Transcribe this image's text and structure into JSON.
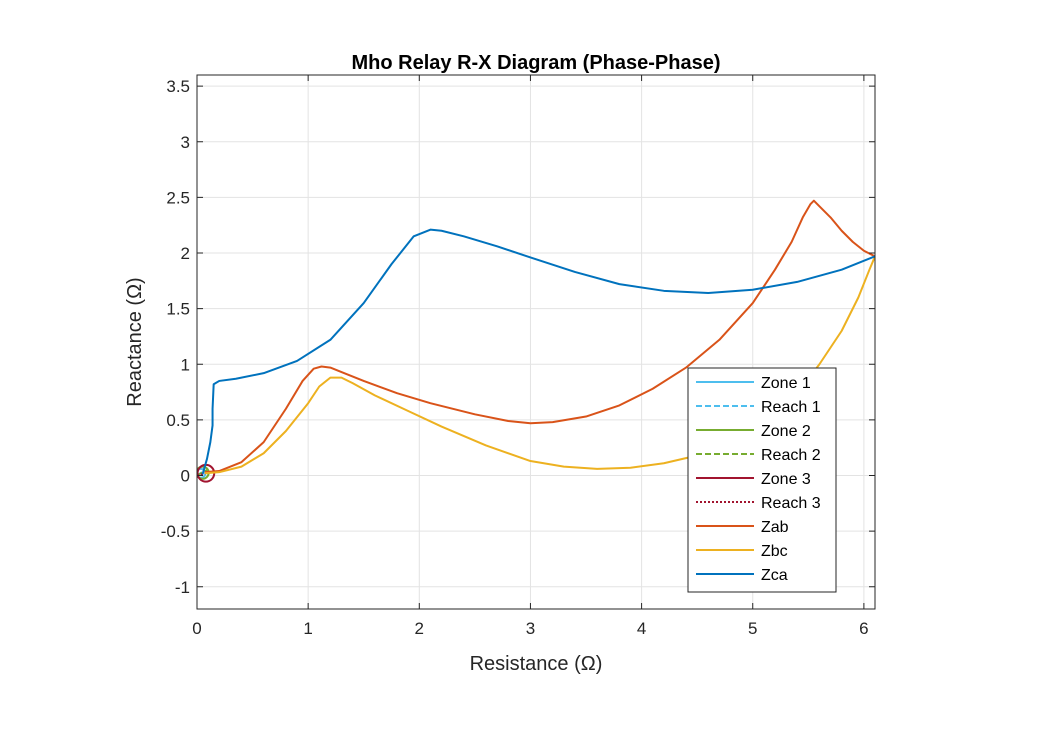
{
  "chart_data": {
    "type": "line",
    "title": "Mho Relay R-X Diagram (Phase-Phase)",
    "xlabel": "Resistance (Ω)",
    "ylabel": "Reactance (Ω)",
    "xlim": [
      0,
      6.1
    ],
    "ylim": [
      -1.2,
      3.6
    ],
    "xticks": [
      0,
      1,
      2,
      3,
      4,
      5,
      6
    ],
    "yticks": [
      -1,
      -0.5,
      0,
      0.5,
      1,
      1.5,
      2,
      2.5,
      3,
      3.5
    ],
    "xtick_labels": [
      "0",
      "1",
      "2",
      "3",
      "4",
      "5",
      "6"
    ],
    "ytick_labels": [
      "-1",
      "-0.5",
      "0",
      "0.5",
      "1",
      "1.5",
      "2",
      "2.5",
      "3",
      "3.5"
    ],
    "grid": true,
    "legend_position": "right, lower-middle",
    "series": [
      {
        "name": "Zone 1",
        "kind": "circle",
        "center": [
          0.035,
          0.02
        ],
        "radius": 0.04,
        "color": "#4DBEEE",
        "dash": "solid"
      },
      {
        "name": "Reach 1",
        "kind": "line",
        "x": [
          0,
          0.06
        ],
        "y": [
          0,
          0.04
        ],
        "color": "#4DBEEE",
        "dash": "dashed"
      },
      {
        "name": "Zone 2",
        "kind": "circle",
        "center": [
          0.05,
          0.025
        ],
        "radius": 0.055,
        "color": "#77AC30",
        "dash": "solid"
      },
      {
        "name": "Reach 2",
        "kind": "line",
        "x": [
          0,
          0.09
        ],
        "y": [
          0,
          0.05
        ],
        "color": "#77AC30",
        "dash": "dashed"
      },
      {
        "name": "Zone 3",
        "kind": "circle",
        "center": [
          0.08,
          0.02
        ],
        "radius": 0.075,
        "color": "#A2142F",
        "dash": "solid"
      },
      {
        "name": "Reach 3",
        "kind": "line",
        "x": [
          0,
          0.15
        ],
        "y": [
          0,
          0.04
        ],
        "color": "#A2142F",
        "dash": "dotted"
      },
      {
        "name": "Zab",
        "kind": "line",
        "color": "#D95319",
        "dash": "solid",
        "x": [
          0.07,
          0.2,
          0.4,
          0.6,
          0.8,
          0.95,
          1.05,
          1.12,
          1.2,
          1.3,
          1.5,
          1.8,
          2.1,
          2.5,
          2.8,
          3.0,
          3.2,
          3.5,
          3.8,
          4.1,
          4.4,
          4.7,
          5.0,
          5.2,
          5.35,
          5.45,
          5.52,
          5.55,
          5.6,
          5.7,
          5.8,
          5.9,
          6.0,
          6.1
        ],
        "y": [
          0.03,
          0.04,
          0.12,
          0.3,
          0.6,
          0.85,
          0.96,
          0.98,
          0.97,
          0.93,
          0.85,
          0.74,
          0.65,
          0.55,
          0.49,
          0.47,
          0.48,
          0.53,
          0.63,
          0.78,
          0.97,
          1.22,
          1.55,
          1.85,
          2.1,
          2.32,
          2.44,
          2.47,
          2.42,
          2.32,
          2.2,
          2.1,
          2.02,
          1.97
        ]
      },
      {
        "name": "Zbc",
        "kind": "line",
        "color": "#EDB120",
        "dash": "solid",
        "x": [
          0.07,
          0.2,
          0.4,
          0.6,
          0.8,
          1.0,
          1.1,
          1.2,
          1.3,
          1.4,
          1.6,
          1.9,
          2.2,
          2.6,
          3.0,
          3.3,
          3.6,
          3.9,
          4.2,
          4.5,
          4.8,
          5.1,
          5.4,
          5.6,
          5.8,
          5.95,
          6.05,
          6.1
        ],
        "y": [
          0.02,
          0.03,
          0.08,
          0.2,
          0.4,
          0.65,
          0.8,
          0.88,
          0.88,
          0.83,
          0.72,
          0.58,
          0.44,
          0.27,
          0.13,
          0.08,
          0.06,
          0.07,
          0.11,
          0.18,
          0.3,
          0.47,
          0.74,
          1.0,
          1.3,
          1.6,
          1.85,
          1.97
        ]
      },
      {
        "name": "Zca",
        "kind": "line",
        "color": "#0072BD",
        "dash": "solid",
        "x": [
          0.05,
          0.09,
          0.12,
          0.14,
          0.14,
          0.15,
          0.2,
          0.35,
          0.6,
          0.9,
          1.2,
          1.5,
          1.75,
          1.95,
          2.1,
          2.2,
          2.4,
          2.7,
          3.0,
          3.4,
          3.8,
          4.2,
          4.6,
          5.0,
          5.4,
          5.8,
          6.1
        ],
        "y": [
          0.01,
          0.15,
          0.3,
          0.45,
          0.6,
          0.82,
          0.85,
          0.87,
          0.92,
          1.03,
          1.22,
          1.55,
          1.9,
          2.15,
          2.21,
          2.2,
          2.15,
          2.06,
          1.96,
          1.83,
          1.72,
          1.66,
          1.64,
          1.67,
          1.74,
          1.85,
          1.97
        ]
      }
    ]
  }
}
